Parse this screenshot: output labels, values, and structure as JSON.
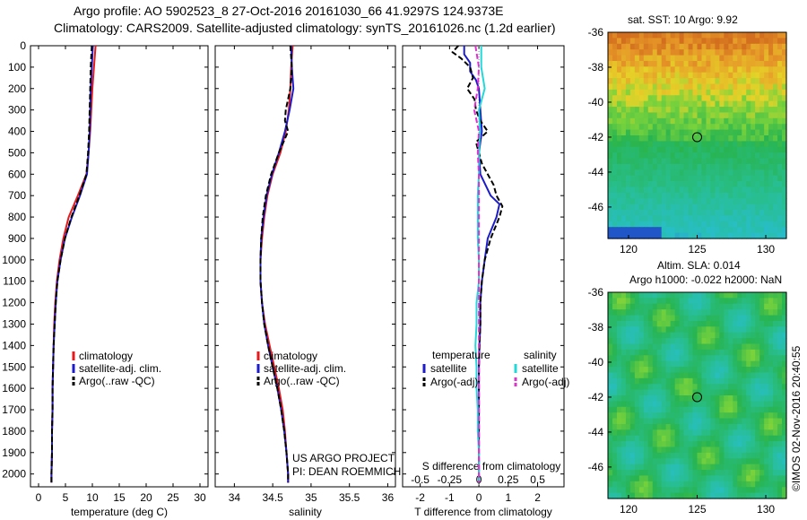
{
  "header": {
    "title_line1": "Argo profile: AO 5902523_8 27-Oct-2016 20161030_66 41.9297S 124.9373E",
    "title_line2": "Climatology: CARS2009. Satellite-adjusted climatology: synTS_20161026.nc (1.2d earlier)"
  },
  "credit": "©IMOS 02-Nov-2016 20:40:55",
  "project": {
    "line1": "US ARGO PROJECT",
    "line2": "PI: DEAN ROEMMICH"
  },
  "colors": {
    "climatology": "#e41a1c",
    "satellite": "#1c1cc8",
    "argo": "#000000",
    "sal_satellite": "#22d8d8",
    "sal_argo": "#e030d0"
  },
  "depth_axis": {
    "ticks": [
      0,
      100,
      200,
      300,
      400,
      500,
      600,
      700,
      800,
      900,
      1000,
      1100,
      1200,
      1300,
      1400,
      1500,
      1600,
      1700,
      1800,
      1900,
      2000
    ],
    "ylim": [
      0,
      2060
    ]
  },
  "chart_data": [
    {
      "type": "line",
      "panel": "temperature",
      "xlabel": "temperature (deg C)",
      "xlim": [
        -1.5,
        31.5
      ],
      "xticks": [
        0,
        5,
        10,
        15,
        20,
        25,
        30
      ],
      "legend": [
        "climatology",
        "satellite-adj. clim.",
        "Argo(..raw -QC)"
      ],
      "series": [
        {
          "name": "climatology",
          "style": "red",
          "depth": [
            0,
            100,
            200,
            300,
            400,
            500,
            600,
            700,
            800,
            900,
            1000,
            1100,
            1200,
            1300,
            1400,
            1500,
            1600,
            1700,
            1800,
            1900,
            2000,
            2040
          ],
          "values": [
            10.6,
            10.3,
            10.0,
            9.8,
            9.6,
            9.3,
            8.9,
            7.3,
            5.6,
            4.6,
            3.9,
            3.4,
            3.1,
            2.9,
            2.8,
            2.7,
            2.6,
            2.6,
            2.5,
            2.5,
            2.4,
            2.4
          ]
        },
        {
          "name": "satellite-adj. clim.",
          "style": "blue",
          "depth": [
            0,
            100,
            200,
            300,
            400,
            500,
            600,
            700,
            800,
            900,
            1000,
            1100,
            1200,
            1300,
            1400,
            1500,
            1600,
            1700,
            1800,
            1900,
            2000,
            2040
          ],
          "values": [
            10.1,
            9.9,
            9.7,
            9.6,
            9.5,
            9.3,
            9.0,
            7.7,
            6.2,
            4.9,
            4.1,
            3.5,
            3.2,
            3.0,
            2.8,
            2.7,
            2.6,
            2.6,
            2.5,
            2.5,
            2.4,
            2.4
          ]
        },
        {
          "name": "Argo(..raw -QC)",
          "style": "black-dashed",
          "depth": [
            0,
            100,
            200,
            300,
            400,
            500,
            600,
            700,
            800,
            900,
            1000,
            1100,
            1200,
            1300,
            1400,
            1500,
            1600,
            1700,
            1800,
            1900,
            2000,
            2040
          ],
          "values": [
            9.9,
            9.7,
            9.6,
            9.5,
            9.4,
            9.2,
            8.9,
            7.6,
            6.1,
            4.9,
            4.1,
            3.5,
            3.2,
            3.0,
            2.8,
            2.7,
            2.6,
            2.6,
            2.5,
            2.5,
            2.4,
            2.4
          ]
        }
      ]
    },
    {
      "type": "line",
      "panel": "salinity",
      "xlabel": "salinity",
      "xlim": [
        33.75,
        36.1
      ],
      "xticks": [
        34,
        34.5,
        35,
        35.5,
        36
      ],
      "legend": [
        "climatology",
        "satellite-adj. clim.",
        "Argo(..raw -QC)"
      ],
      "series": [
        {
          "name": "climatology",
          "style": "red",
          "depth": [
            0,
            100,
            200,
            300,
            400,
            500,
            600,
            700,
            800,
            900,
            1000,
            1100,
            1200,
            1300,
            1400,
            1500,
            1600,
            1700,
            1800,
            1900,
            2000,
            2040
          ],
          "values": [
            34.76,
            34.74,
            34.73,
            34.71,
            34.67,
            34.6,
            34.5,
            34.43,
            34.39,
            34.36,
            34.34,
            34.34,
            34.36,
            34.4,
            34.46,
            34.52,
            34.58,
            34.63,
            34.66,
            34.68,
            34.7,
            34.7
          ]
        },
        {
          "name": "satellite-adj. clim.",
          "style": "blue",
          "depth": [
            0,
            100,
            200,
            300,
            400,
            500,
            600,
            700,
            800,
            900,
            1000,
            1100,
            1200,
            1300,
            1400,
            1500,
            1600,
            1700,
            1800,
            1900,
            2000,
            2040
          ],
          "values": [
            34.74,
            34.75,
            34.77,
            34.72,
            34.66,
            34.58,
            34.49,
            34.42,
            34.38,
            34.35,
            34.34,
            34.34,
            34.36,
            34.39,
            34.44,
            34.5,
            34.56,
            34.61,
            34.65,
            34.68,
            34.7,
            34.7
          ]
        },
        {
          "name": "Argo(..raw -QC)",
          "style": "black-dashed",
          "depth": [
            0,
            100,
            200,
            300,
            350,
            400,
            500,
            600,
            700,
            800,
            900,
            1000,
            1100,
            1200,
            1300,
            1400,
            1500,
            1600,
            1700,
            1800,
            1900,
            2000,
            2040
          ],
          "values": [
            34.73,
            34.75,
            34.73,
            34.67,
            34.66,
            34.7,
            34.58,
            34.48,
            34.41,
            34.37,
            34.35,
            34.34,
            34.34,
            34.36,
            34.39,
            34.44,
            34.5,
            34.56,
            34.61,
            34.65,
            34.68,
            34.7,
            34.7
          ]
        }
      ]
    },
    {
      "type": "line",
      "panel": "differences",
      "xlabel": "T difference from climatology",
      "xlabel_top": "S difference from climatology",
      "xlim": [
        -2.6,
        2.9
      ],
      "xticks": [
        -2,
        -1,
        0,
        1,
        2
      ],
      "top_xticks": [
        -0.5,
        -0.25,
        0,
        0.25,
        0.5
      ],
      "top_xtick_labels": [
        "-0.5",
        "-0.25",
        "0",
        "0.25",
        "0.5"
      ],
      "legend_left_title": "temperature",
      "legend_right_title": "salinity",
      "legend_left": [
        "satellite",
        "Argo(-adj)"
      ],
      "legend_right": [
        "satellite",
        "Argo(-adj)"
      ],
      "series": [
        {
          "name": "T satellite",
          "style": "blue",
          "depth": [
            0,
            40,
            80,
            120,
            160,
            200,
            300,
            400,
            500,
            600,
            700,
            740,
            800,
            900,
            1000,
            1100,
            1200,
            1300,
            1400,
            1500,
            1600,
            1700,
            1800,
            1900,
            2000,
            2040
          ],
          "values": [
            -0.5,
            -0.5,
            -0.3,
            -0.3,
            -0.1,
            0.0,
            0.05,
            0.1,
            0.0,
            0.05,
            0.4,
            0.7,
            0.6,
            0.3,
            0.2,
            0.1,
            0.05,
            0.05,
            0.02,
            0.0,
            0.0,
            0.0,
            0.0,
            0.0,
            0.0,
            0.0
          ]
        },
        {
          "name": "T Argo(-adj)",
          "style": "black-dashed",
          "depth": [
            0,
            30,
            60,
            100,
            150,
            200,
            250,
            300,
            350,
            400,
            450,
            500,
            550,
            600,
            650,
            700,
            750,
            800,
            900,
            1000,
            1100,
            1200,
            1300,
            1400,
            1500,
            1600,
            1700,
            1800,
            1900,
            2000,
            2040
          ],
          "values": [
            -0.7,
            -0.9,
            -0.6,
            -0.3,
            -0.2,
            -0.4,
            -0.15,
            -0.1,
            0.05,
            0.3,
            -0.1,
            0.0,
            0.1,
            0.3,
            0.5,
            0.6,
            0.8,
            0.7,
            0.4,
            0.2,
            0.1,
            0.05,
            0.05,
            0.02,
            0.0,
            0.0,
            0.0,
            0.0,
            0.0,
            0.0,
            0.0
          ]
        },
        {
          "name": "S satellite",
          "style": "cyan",
          "depth": [
            0,
            100,
            200,
            300,
            400,
            500,
            600,
            700,
            800,
            900,
            1000,
            1100,
            1200,
            1300,
            1400,
            1500,
            1600,
            1700,
            1800,
            1900,
            2000,
            2040
          ],
          "values": [
            0.02,
            0.02,
            0.05,
            0.0,
            0.01,
            0.0,
            0.0,
            -0.01,
            -0.01,
            -0.01,
            0.0,
            0.0,
            -0.02,
            -0.02,
            -0.03,
            -0.02,
            -0.02,
            -0.01,
            -0.01,
            0.0,
            0.0,
            0.0
          ]
        },
        {
          "name": "S Argo(-adj)",
          "style": "magenta-dashed",
          "depth": [
            0,
            100,
            200,
            300,
            400,
            500,
            600,
            700,
            800,
            900,
            1000,
            1100,
            1200,
            1300,
            1400,
            1500,
            1600,
            1700,
            1800,
            1900,
            2000,
            2040
          ],
          "values": [
            -0.03,
            0.0,
            -0.01,
            -0.04,
            0.0,
            -0.01,
            0.0,
            0.0,
            0.0,
            0.0,
            0.0,
            0.0,
            0.0,
            0.0,
            0.0,
            0.0,
            0.0,
            0.0,
            0.0,
            0.0,
            0.0,
            0.0
          ]
        }
      ]
    },
    {
      "type": "heatmap",
      "panel": "sst-map",
      "title": "sat. SST: 10 Argo: 9.92",
      "xlim": [
        118.5,
        131.5
      ],
      "ylim": [
        -47.8,
        -36
      ],
      "xticks": [
        120,
        125,
        130
      ],
      "yticks": [
        -36,
        -38,
        -40,
        -42,
        -44,
        -46
      ],
      "marker": {
        "lon": 125,
        "lat": -42
      }
    },
    {
      "type": "heatmap",
      "panel": "sla-map",
      "title_line1": "Altim. SLA: 0.014",
      "title_line2": "Argo h1000: -0.022 h2000: NaN",
      "xlim": [
        118.5,
        131.5
      ],
      "ylim": [
        -47.8,
        -36
      ],
      "xticks": [
        120,
        125,
        130
      ],
      "yticks": [
        -36,
        -38,
        -40,
        -42,
        -44,
        -46
      ],
      "marker": {
        "lon": 125,
        "lat": -42
      }
    }
  ]
}
